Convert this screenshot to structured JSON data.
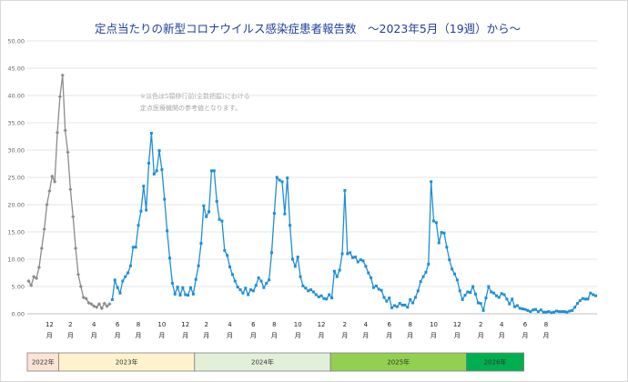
{
  "chart_data": {
    "type": "line",
    "title": "定点当たりの新型コロナウイルス感染症患者報告数　～2023年5月（19週）から～",
    "note_lines": [
      "※淡色は5類移行前(全数把握)における",
      "定点医療機関の参考値となります。"
    ],
    "ylim": [
      0,
      50
    ],
    "y_ticks": [
      "0.00",
      "5.00",
      "10.00",
      "15.00",
      "20.00",
      "25.00",
      "30.00",
      "35.00",
      "40.00",
      "45.00",
      "50.00"
    ],
    "x_ticks": [
      {
        "num": "12",
        "unit": "月",
        "pos": 8
      },
      {
        "num": "2",
        "unit": "月",
        "pos": 16
      },
      {
        "num": "4",
        "unit": "月",
        "pos": 25
      },
      {
        "num": "6",
        "unit": "月",
        "pos": 34
      },
      {
        "num": "8",
        "unit": "月",
        "pos": 42
      },
      {
        "num": "10",
        "unit": "月",
        "pos": 51
      },
      {
        "num": "12",
        "unit": "月",
        "pos": 60
      },
      {
        "num": "2",
        "unit": "月",
        "pos": 68
      },
      {
        "num": "4",
        "unit": "月",
        "pos": 77
      },
      {
        "num": "6",
        "unit": "月",
        "pos": 86
      },
      {
        "num": "8",
        "unit": "月",
        "pos": 94
      },
      {
        "num": "10",
        "unit": "月",
        "pos": 103
      },
      {
        "num": "12",
        "unit": "月",
        "pos": 112
      },
      {
        "num": "2",
        "unit": "月",
        "pos": 121
      },
      {
        "num": "4",
        "unit": "月",
        "pos": 129
      },
      {
        "num": "6",
        "unit": "月",
        "pos": 138
      },
      {
        "num": "8",
        "unit": "月",
        "pos": 146
      },
      {
        "num": "10",
        "unit": "月",
        "pos": 155
      },
      {
        "num": "12",
        "unit": "月",
        "pos": 164
      },
      {
        "num": "2",
        "unit": "月",
        "pos": 173
      },
      {
        "num": "4",
        "unit": "月",
        "pos": 181
      },
      {
        "num": "6",
        "unit": "月",
        "pos": 190
      },
      {
        "num": "8",
        "unit": "月",
        "pos": 198
      }
    ],
    "year_bands": [
      {
        "label": "2022年",
        "start": -0.5,
        "end": 11.5,
        "color": "#fbe4d5"
      },
      {
        "label": "2023年",
        "start": 11.5,
        "end": 63.5,
        "color": "#fff2cc"
      },
      {
        "label": "2024年",
        "start": 63.5,
        "end": 115.5,
        "color": "#e2efd9"
      },
      {
        "label": "2025年",
        "start": 115.5,
        "end": 167.5,
        "color": "#92d050"
      },
      {
        "label": "2026年",
        "start": 167.5,
        "end": 189.5,
        "color": "#00b050"
      }
    ],
    "series": [
      {
        "color": "#8c8c8c",
        "values": [
          6.0,
          5.2,
          6.8,
          6.5,
          8.5,
          12.0,
          15.5,
          20.0,
          22.5,
          25.2,
          24.2,
          33.2,
          39.8,
          43.7,
          33.6,
          29.6,
          22.8,
          17.8,
          12.0,
          7.2,
          5.0,
          3.0,
          2.8,
          2.0,
          1.8,
          1.4,
          1.2,
          1.8,
          1.0,
          1.9,
          1.4,
          1.8
        ]
      },
      {
        "color": "#1f8fd6",
        "values": [
          2.6,
          6.2,
          4.8,
          3.8,
          6.0,
          6.8,
          7.5,
          8.8,
          12.2,
          12.2,
          16.2,
          18.8,
          23.4,
          19.0,
          27.6,
          33.1,
          25.6,
          26.2,
          29.9,
          26.4,
          21.0,
          15.2,
          10.2,
          5.6,
          3.6,
          4.9,
          3.4,
          4.8,
          3.5,
          3.4,
          4.8,
          3.6,
          6.3,
          8.8,
          12.9,
          19.8,
          17.8,
          18.7,
          26.2,
          26.2,
          20.6,
          17.3,
          17.0,
          11.6,
          10.7,
          8.6,
          7.2,
          6.0,
          4.9,
          4.4,
          3.8,
          4.7,
          3.5,
          4.4,
          4.2,
          5.2,
          6.6,
          6.0,
          4.8,
          5.6,
          6.2,
          11.2,
          18.4,
          25.0,
          24.5,
          24.2,
          18.3,
          24.9,
          16.2,
          10.0,
          8.7,
          10.4,
          6.8,
          5.1,
          4.7,
          4.2,
          4.4,
          4.0,
          3.5,
          3.1,
          3.3,
          2.8,
          2.7,
          3.5,
          2.9,
          7.8,
          6.8,
          8.0,
          11.0,
          22.6,
          11.0,
          11.2,
          10.3,
          10.4,
          9.5,
          9.9,
          9.7,
          8.7,
          7.5,
          6.6,
          4.8,
          5.1,
          4.5,
          4.3,
          3.0,
          2.3,
          2.9,
          1.1,
          1.5,
          1.3,
          1.9,
          1.6,
          1.6,
          1.2,
          2.6,
          2.0,
          3.0,
          4.2,
          5.9,
          6.8,
          7.6,
          9.1,
          24.2,
          17.0,
          16.7,
          13.0,
          14.9,
          14.8,
          12.2,
          9.9,
          8.2,
          7.3,
          6.2,
          4.2,
          2.6,
          3.4,
          4.0,
          3.9,
          5.0,
          3.6,
          2.0,
          1.9,
          0.6,
          2.9,
          5.0,
          4.0,
          3.8,
          3.3,
          3.0,
          3.7,
          3.5,
          2.7,
          1.8,
          2.7,
          1.3,
          1.5,
          1.0,
          0.9,
          0.8,
          0.6,
          0.4,
          0.7,
          0.8,
          0.4,
          0.7,
          0.3,
          0.3,
          0.4,
          0.2,
          0.3,
          0.5,
          0.4,
          0.4,
          0.4,
          0.3,
          0.5,
          0.6,
          1.2,
          1.9,
          2.4,
          2.8,
          2.7,
          2.7,
          3.8,
          3.5,
          3.3
        ]
      }
    ]
  }
}
